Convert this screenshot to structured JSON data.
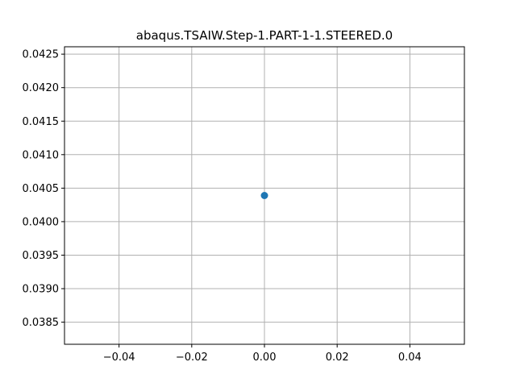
{
  "chart_data": {
    "type": "scatter",
    "title": "abaqus.TSAIW.Step-1.PART-1-1.STEERED.0",
    "xlabel": "",
    "ylabel": "",
    "series": [
      {
        "x": [
          0.0
        ],
        "y": [
          0.04039
        ],
        "color": "#1f77b4"
      }
    ],
    "xlim": [
      -0.055,
      0.055
    ],
    "ylim": [
      0.03817,
      0.04261
    ],
    "x_ticks": [
      {
        "value": -0.04,
        "label": "−0.04"
      },
      {
        "value": -0.02,
        "label": "−0.02"
      },
      {
        "value": 0.0,
        "label": "0.00"
      },
      {
        "value": 0.02,
        "label": "0.02"
      },
      {
        "value": 0.04,
        "label": "0.04"
      }
    ],
    "y_ticks": [
      {
        "value": 0.0385,
        "label": "0.0385"
      },
      {
        "value": 0.039,
        "label": "0.0390"
      },
      {
        "value": 0.0395,
        "label": "0.0395"
      },
      {
        "value": 0.04,
        "label": "0.0400"
      },
      {
        "value": 0.0405,
        "label": "0.0405"
      },
      {
        "value": 0.041,
        "label": "0.0410"
      },
      {
        "value": 0.0415,
        "label": "0.0415"
      },
      {
        "value": 0.042,
        "label": "0.0420"
      },
      {
        "value": 0.0425,
        "label": "0.0425"
      }
    ],
    "grid": true,
    "legend": false
  }
}
